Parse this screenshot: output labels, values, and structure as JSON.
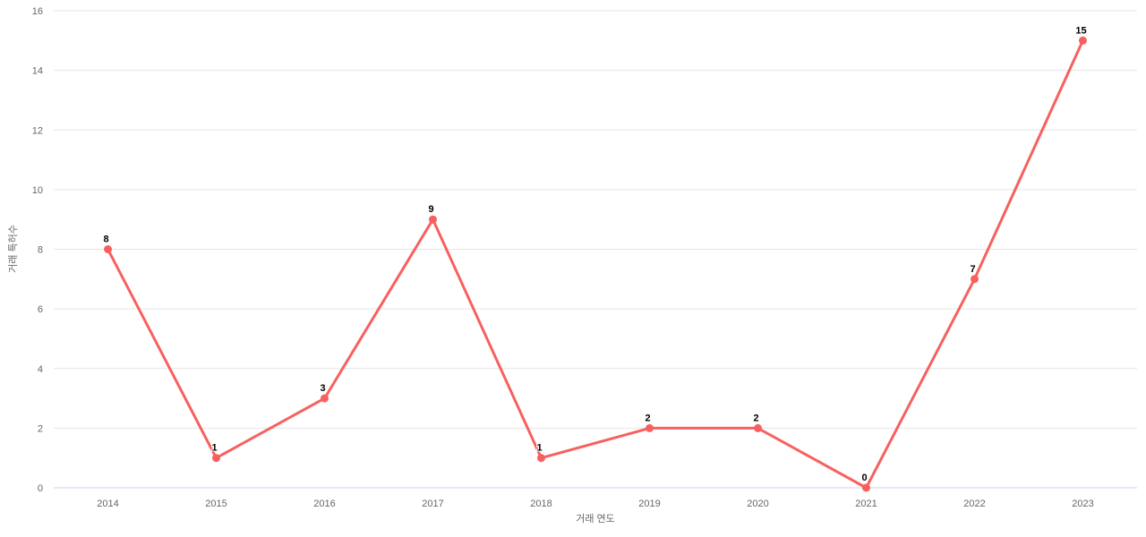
{
  "chart_data": {
    "type": "line",
    "categories": [
      "2014",
      "2015",
      "2016",
      "2017",
      "2018",
      "2019",
      "2020",
      "2021",
      "2022",
      "2023"
    ],
    "values": [
      8,
      1,
      3,
      9,
      1,
      2,
      2,
      0,
      7,
      15
    ],
    "title": "",
    "xlabel": "거래 연도",
    "ylabel": "거래 특허수",
    "ylim": [
      0,
      16
    ],
    "ytick_step": 2,
    "yticks": [
      "0",
      "2",
      "4",
      "6",
      "8",
      "10",
      "12",
      "14",
      "16"
    ],
    "grid": "horizontal-only",
    "legend": "none",
    "data_labels_shown": true,
    "colors": {
      "series": "#f8605f",
      "gridline": "#e6e6e6",
      "axis_line": "#ccd6eb",
      "tick_label": "#666666",
      "axis_title": "#666666",
      "data_label": "#000000",
      "background": "#ffffff"
    }
  }
}
